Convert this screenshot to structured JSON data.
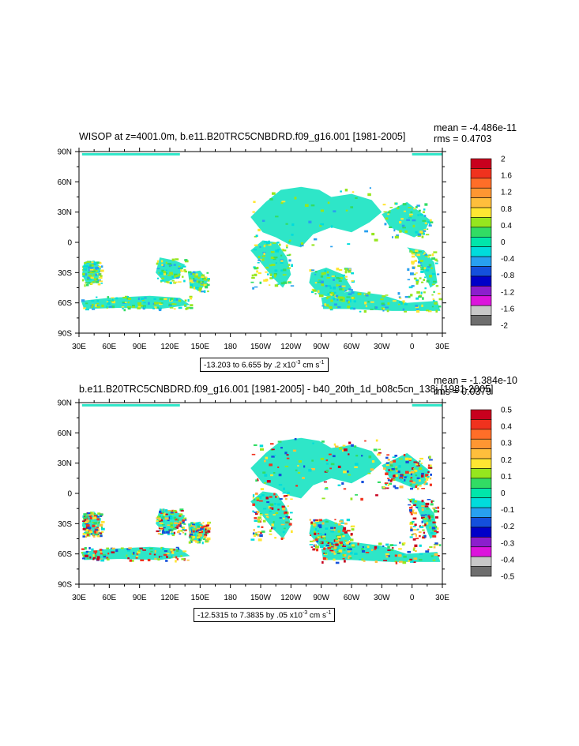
{
  "chart_data": [
    {
      "type": "heatmap",
      "title": "WISOP at z=4001.0m, b.e11.B20TRC5CNBDRD.f09_g16.001 [1981-2005]",
      "stats": {
        "mean": "mean = -4.486e-11",
        "rms": "rms = 0.4703"
      },
      "range_text": "-13.203 to 6.655 by .2 x10",
      "range_exp": "-3",
      "range_units": "cm s",
      "range_units_exp": "-1",
      "x_ticks": [
        "30E",
        "60E",
        "90E",
        "120E",
        "150E",
        "180",
        "150W",
        "120W",
        "90W",
        "60W",
        "30W",
        "0",
        "30E"
      ],
      "y_ticks": [
        "90N",
        "60N",
        "30N",
        "0",
        "30S",
        "60S",
        "90S"
      ],
      "legend": {
        "labels": [
          "2",
          "1.6",
          "1.2",
          "0.8",
          "0.4",
          "0",
          "-0.4",
          "-0.8",
          "-1.2",
          "-1.6",
          "-2"
        ],
        "colors": [
          "#c8001e",
          "#f0321e",
          "#ff6e28",
          "#ff9632",
          "#ffbe3c",
          "#ffe632",
          "#96e61e",
          "#32dc64",
          "#00e6aa",
          "#00dcdc",
          "#28a0f0",
          "#1450dc",
          "#0000c8",
          "#8c1ecd",
          "#dc14dc",
          "#c8c8c8",
          "#6e6e6e"
        ]
      }
    },
    {
      "type": "heatmap",
      "title": "b.e11.B20TRC5CNBDRD.f09_g16.001 [1981-2005] - b40_20th_1d_b08c5cn_138j [1981-2005]",
      "stats": {
        "mean": "mean = -1.384e-10",
        "rms": "rms = 0.0379"
      },
      "range_text": "-12.5315 to 7.3835 by .05 x10",
      "range_exp": "-3",
      "range_units": "cm s",
      "range_units_exp": "-1",
      "x_ticks": [
        "30E",
        "60E",
        "90E",
        "120E",
        "150E",
        "180",
        "150W",
        "120W",
        "90W",
        "60W",
        "30W",
        "0",
        "30E"
      ],
      "y_ticks": [
        "90N",
        "60N",
        "30N",
        "0",
        "30S",
        "60S",
        "90S"
      ],
      "legend": {
        "labels": [
          "0.5",
          "0.4",
          "0.3",
          "0.2",
          "0.1",
          "0",
          "-0.1",
          "-0.2",
          "-0.3",
          "-0.4",
          "-0.5"
        ],
        "colors": [
          "#c8001e",
          "#f0321e",
          "#ff6e28",
          "#ff9632",
          "#ffbe3c",
          "#ffe632",
          "#96e61e",
          "#32dc64",
          "#00e6aa",
          "#00dcdc",
          "#28a0f0",
          "#1450dc",
          "#0000c8",
          "#8c1ecd",
          "#dc14dc",
          "#c8c8c8",
          "#6e6e6e"
        ]
      }
    }
  ]
}
